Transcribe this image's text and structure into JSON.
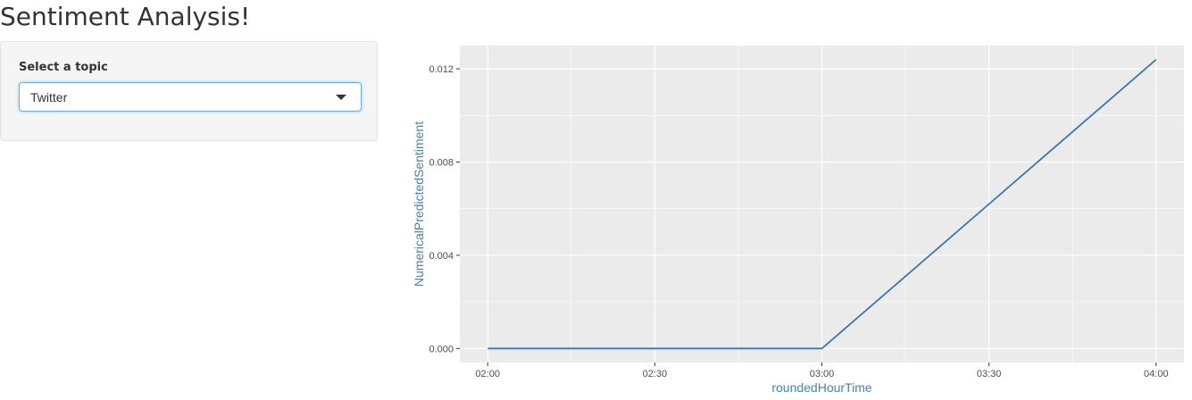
{
  "app": {
    "title": "Sentiment Analysis!"
  },
  "sidebar": {
    "select_label": "Select a topic",
    "selected_topic": "Twitter"
  },
  "colors": {
    "line": "#3a76b0",
    "axis_title": "#4682b4",
    "panel_background": "#ebebeb",
    "grid": "#ffffff"
  },
  "chart_data": {
    "type": "line",
    "xlabel": "roundedHourTime",
    "ylabel": "NumericalPredictedSentiment",
    "x": [
      "02:00",
      "02:30",
      "03:00",
      "03:30",
      "04:00"
    ],
    "series": [
      {
        "values": [
          0.0,
          0.0,
          0.0,
          0.0062,
          0.0124
        ]
      }
    ],
    "xlim": [
      "01:55",
      "04:05"
    ],
    "ylim": [
      -0.0006,
      0.013
    ],
    "yticks": [
      0.0,
      0.004,
      0.008,
      0.012
    ],
    "ytick_labels": [
      "0.000",
      "0.004",
      "0.008",
      "0.012"
    ],
    "grid": true
  }
}
